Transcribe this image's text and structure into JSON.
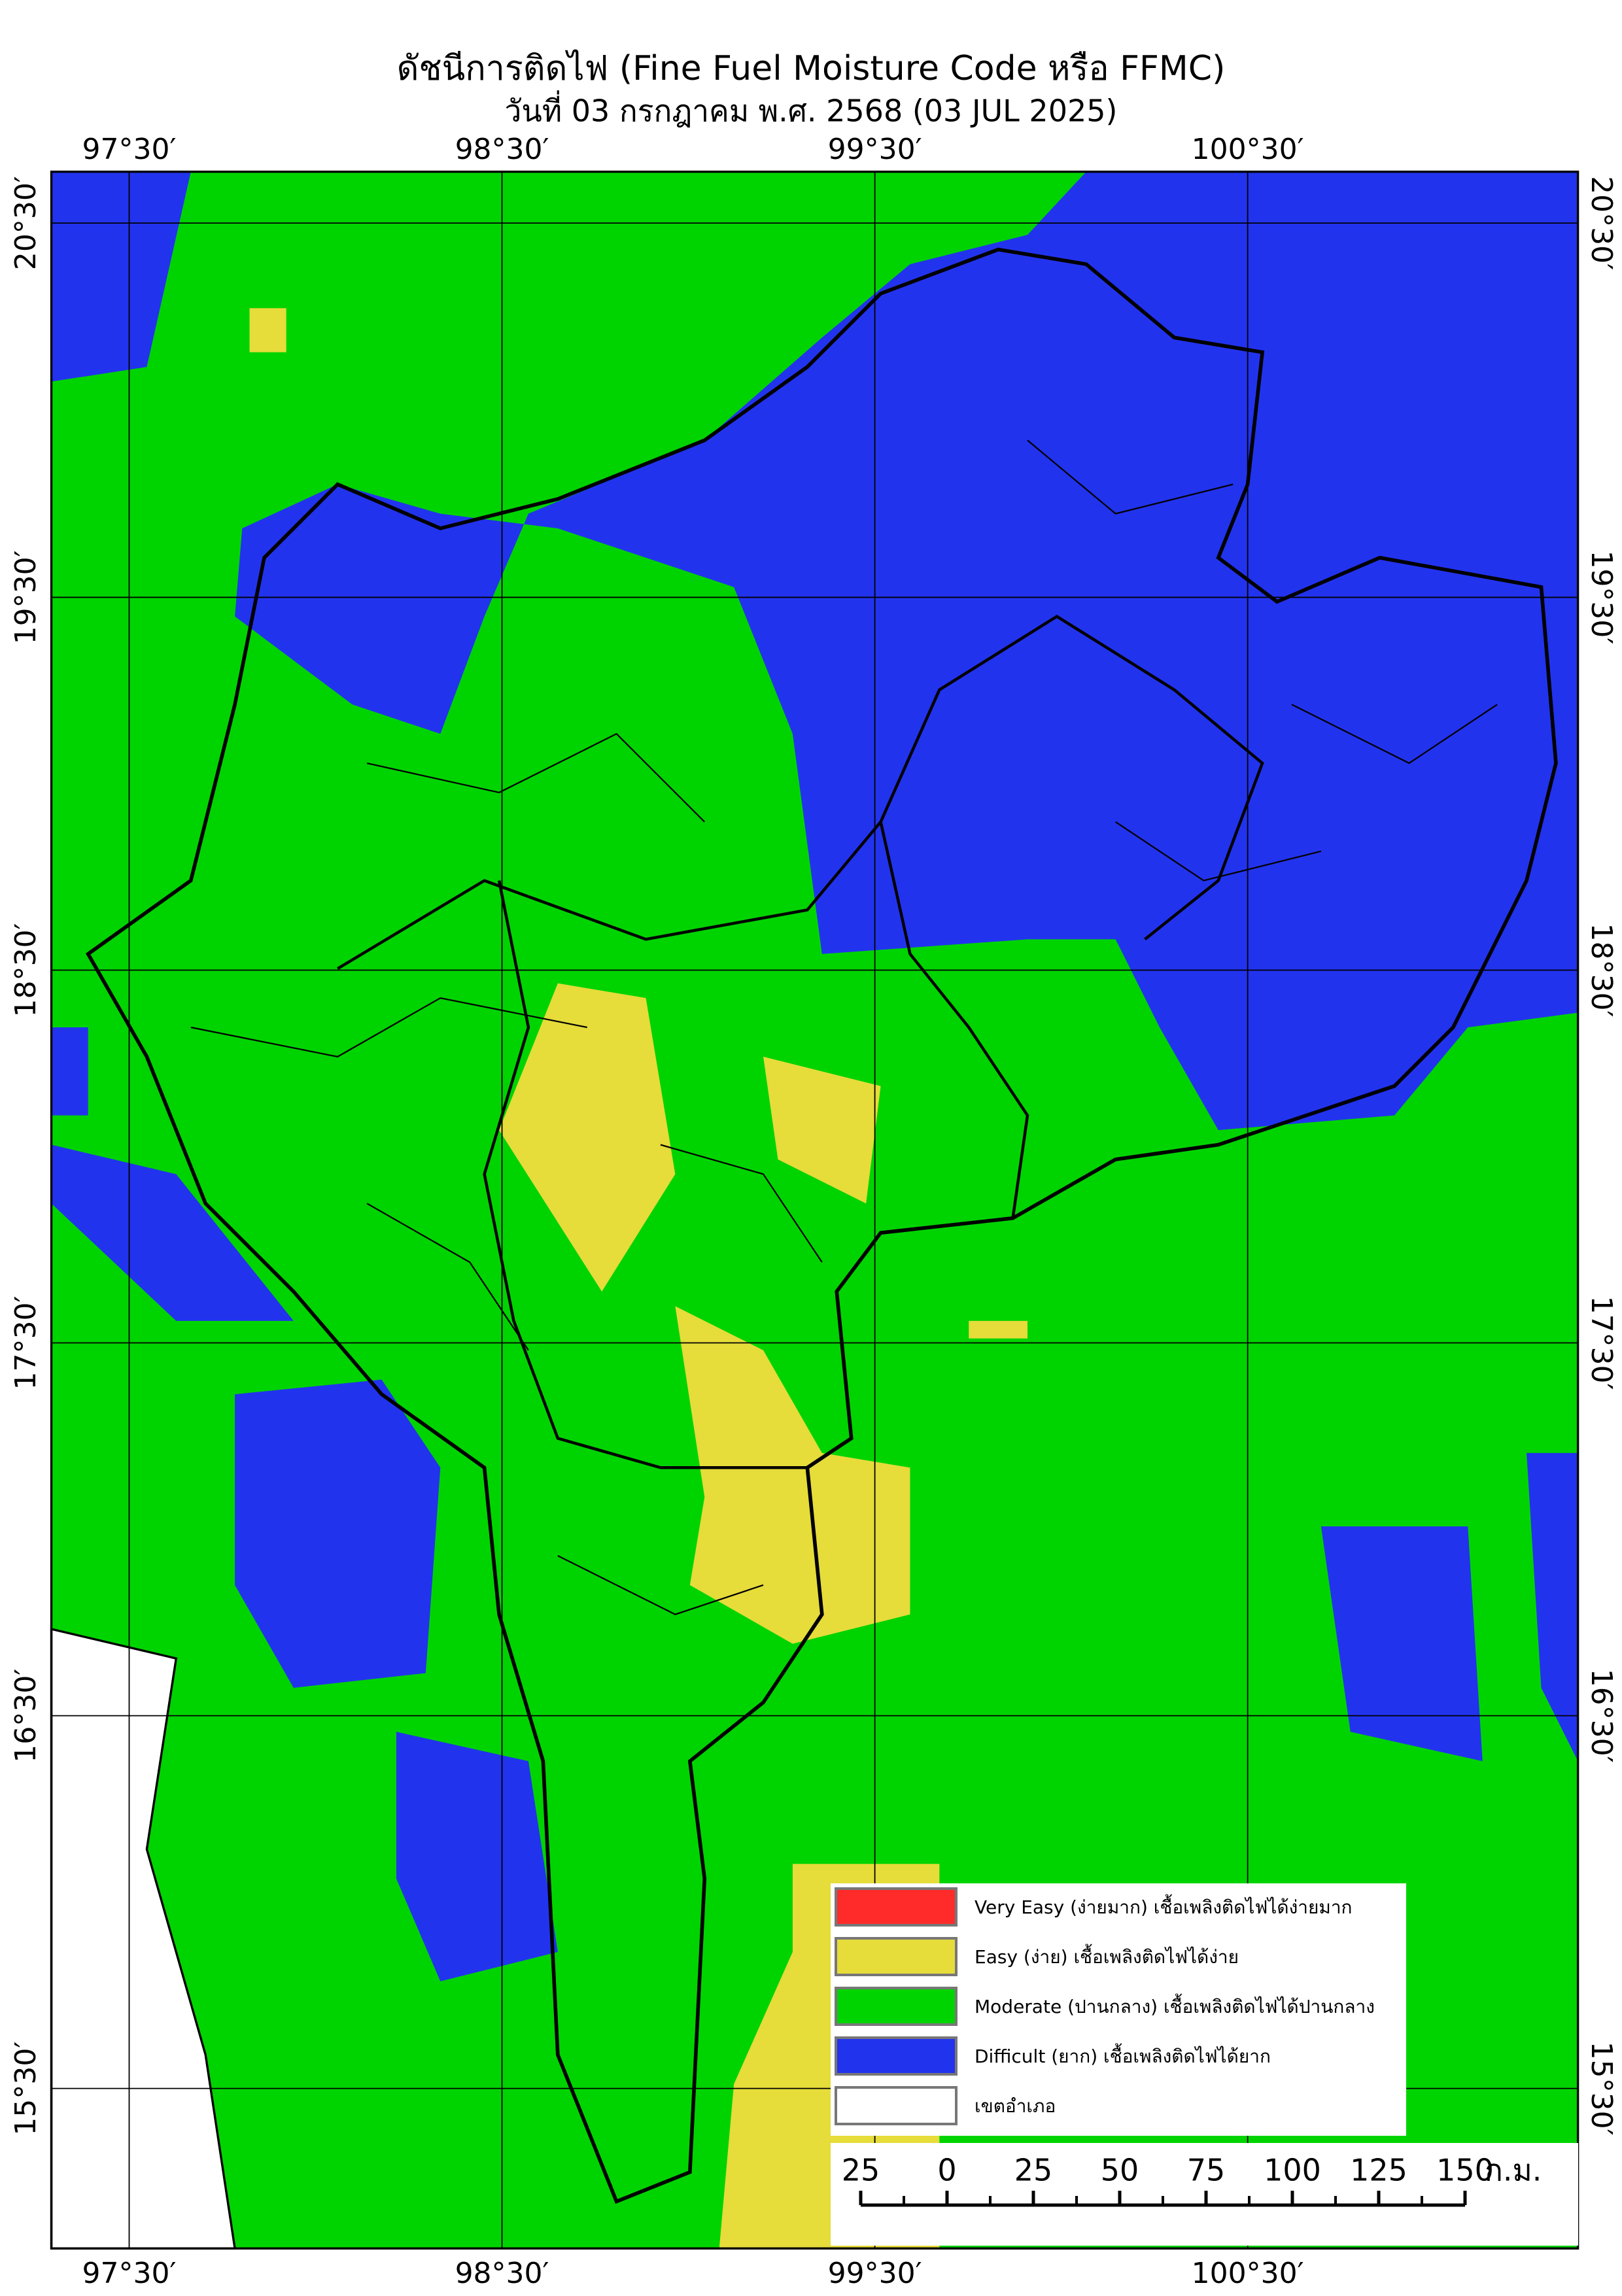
{
  "header": {
    "title": "ดัชนีการติดไฟ (Fine Fuel Moisture Code หรือ FFMC)",
    "subtitle": "วันที่ 03 กรกฎาคม พ.ศ. 2568 (03 JUL 2025)"
  },
  "map": {
    "lon_labels": [
      "97°30′",
      "98°30′",
      "99°30′",
      "100°30′"
    ],
    "lat_labels": [
      "20°30′",
      "19°30′",
      "18°30′",
      "17°30′",
      "16°30′",
      "15°30′"
    ]
  },
  "legend": {
    "items": [
      {
        "label": "Very Easy (ง่ายมาก) เชื้อเพลิงติดไฟได้ง่ายมาก",
        "color": "#ff2a2a"
      },
      {
        "label": "Easy (ง่าย) เชื้อเพลิงติดไฟได้ง่าย",
        "color": "#e6dc3a"
      },
      {
        "label": "Moderate (ปานกลาง) เชื้อเพลิงติดไฟได้ปานกลาง",
        "color": "#00d400"
      },
      {
        "label": "Difficult (ยาก) เชื้อเพลิงติดไฟได้ยาก",
        "color": "#2233ee"
      },
      {
        "label": "เขตอำเภอ",
        "color": "#ffffff"
      }
    ]
  },
  "scale_bar": {
    "labels": [
      "25",
      "0",
      "25",
      "50",
      "75",
      "100",
      "125",
      "150"
    ],
    "unit": "ก.ม."
  }
}
